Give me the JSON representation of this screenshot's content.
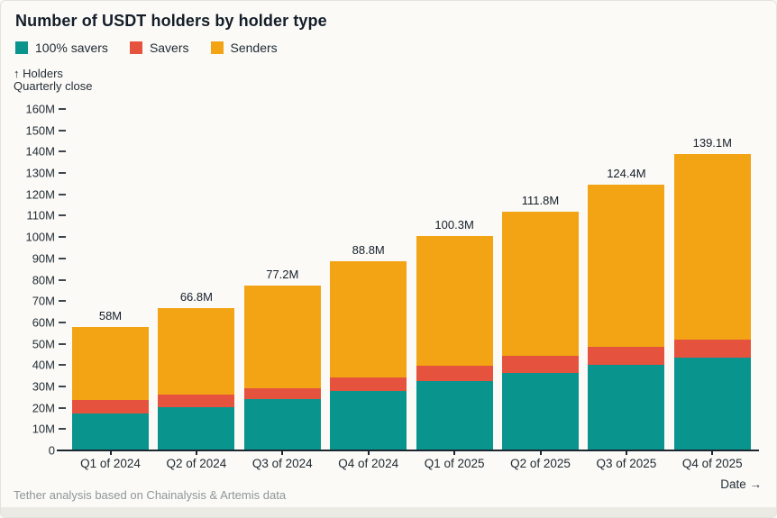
{
  "title": "Number of USDT holders by holder type",
  "legend": [
    {
      "label": "100% savers",
      "color": "#0a948e"
    },
    {
      "label": "Savers",
      "color": "#e5533f"
    },
    {
      "label": "Senders",
      "color": "#f2a414"
    }
  ],
  "y_axis": {
    "arrow_label": "↑ Holders",
    "sub_label": "Quarterly close",
    "tick_labels": [
      "0",
      "10M",
      "20M",
      "30M",
      "40M",
      "50M",
      "60M",
      "70M",
      "80M",
      "90M",
      "100M",
      "110M",
      "120M",
      "130M",
      "140M",
      "150M",
      "160M"
    ]
  },
  "x_axis": {
    "label": "Date →"
  },
  "footer": "Tether analysis based on Chainalysis & Artemis data",
  "chart_data": {
    "type": "bar",
    "stacked": true,
    "title": "Number of USDT holders by holder type",
    "xlabel": "Date",
    "ylabel": "Holders (Quarterly close)",
    "ylim": [
      0,
      160
    ],
    "y_tick_step": 10,
    "y_unit": "M",
    "grid": false,
    "legend_position": "top-left",
    "categories": [
      "Q1 of 2024",
      "Q2 of 2024",
      "Q3 of 2024",
      "Q4 of 2024",
      "Q1 of 2025",
      "Q2 of 2025",
      "Q3 of 2025",
      "Q4 of 2025"
    ],
    "series": [
      {
        "name": "100% savers",
        "color": "#0a948e",
        "values": [
          17.5,
          20.3,
          24.0,
          28.0,
          32.4,
          36.3,
          40.0,
          43.4
        ]
      },
      {
        "name": "Savers",
        "color": "#e5533f",
        "values": [
          6.0,
          5.7,
          5.2,
          6.1,
          7.2,
          8.0,
          8.4,
          8.7
        ]
      },
      {
        "name": "Senders",
        "color": "#f2a414",
        "values": [
          34.5,
          40.8,
          48.0,
          54.7,
          60.7,
          67.5,
          76.0,
          87.0
        ]
      }
    ],
    "totals": [
      58,
      66.8,
      77.2,
      88.8,
      100.3,
      111.8,
      124.4,
      139.1
    ],
    "total_labels": [
      "58M",
      "66.8M",
      "77.2M",
      "88.8M",
      "100.3M",
      "111.8M",
      "124.4M",
      "139.1M"
    ]
  }
}
